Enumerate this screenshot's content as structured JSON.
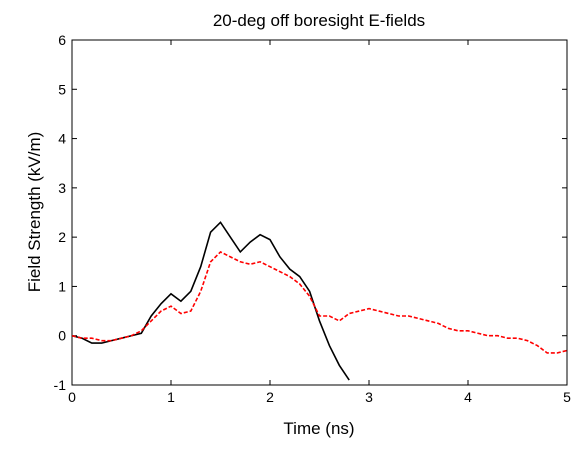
{
  "chart_data": {
    "type": "line",
    "title": "20-deg off boresight E-fields",
    "xlabel": "Time (ns)",
    "ylabel": "Field Strength (kV/m)",
    "x": [
      0,
      0.1,
      0.2,
      0.3,
      0.4,
      0.5,
      0.6,
      0.7,
      0.8,
      0.9,
      1.0,
      1.1,
      1.2,
      1.3,
      1.4,
      1.5,
      1.6,
      1.7,
      1.8,
      1.9,
      2.0,
      2.1,
      2.2,
      2.3,
      2.4,
      2.5,
      2.6,
      2.7,
      2.8,
      2.9,
      3.0,
      3.1,
      3.2,
      3.3,
      3.4,
      3.5,
      3.6,
      3.7,
      3.8,
      3.9,
      4.0,
      4.1,
      4.2,
      4.3,
      4.4,
      4.5,
      4.6,
      4.7,
      4.8,
      4.9,
      5.0
    ],
    "series": [
      {
        "color": "#000000",
        "dash": "solid",
        "values": [
          0,
          -0.05,
          -0.15,
          -0.15,
          -0.1,
          -0.05,
          0.0,
          0.05,
          0.4,
          0.65,
          0.85,
          0.7,
          0.9,
          1.4,
          2.1,
          2.3,
          2.0,
          1.7,
          1.9,
          2.05,
          1.95,
          1.6,
          1.35,
          1.2,
          0.9,
          0.3,
          -0.2,
          -0.6,
          -0.9,
          null,
          null,
          null,
          null,
          null,
          null,
          null,
          null,
          null,
          null,
          null,
          null,
          null,
          null,
          null,
          null,
          null,
          null,
          null,
          null,
          null,
          null
        ]
      },
      {
        "color": "#ff0000",
        "dash": "dashed",
        "values": [
          0,
          -0.05,
          -0.05,
          -0.1,
          -0.1,
          -0.05,
          0.0,
          0.1,
          0.3,
          0.5,
          0.6,
          0.45,
          0.5,
          0.9,
          1.5,
          1.7,
          1.6,
          1.5,
          1.45,
          1.5,
          1.4,
          1.3,
          1.2,
          1.05,
          0.8,
          0.4,
          0.4,
          0.3,
          0.45,
          0.5,
          0.55,
          0.5,
          0.45,
          0.4,
          0.4,
          0.35,
          0.3,
          0.25,
          0.15,
          0.1,
          0.1,
          0.05,
          0.0,
          0.0,
          -0.05,
          -0.05,
          -0.1,
          -0.2,
          -0.35,
          -0.35,
          -0.3
        ]
      }
    ],
    "xlim": [
      0,
      5
    ],
    "ylim": [
      -1,
      6
    ],
    "xticks": [
      0,
      1,
      2,
      3,
      4,
      5
    ],
    "yticks": [
      -1,
      0,
      1,
      2,
      3,
      4,
      5,
      6
    ],
    "grid": false
  }
}
